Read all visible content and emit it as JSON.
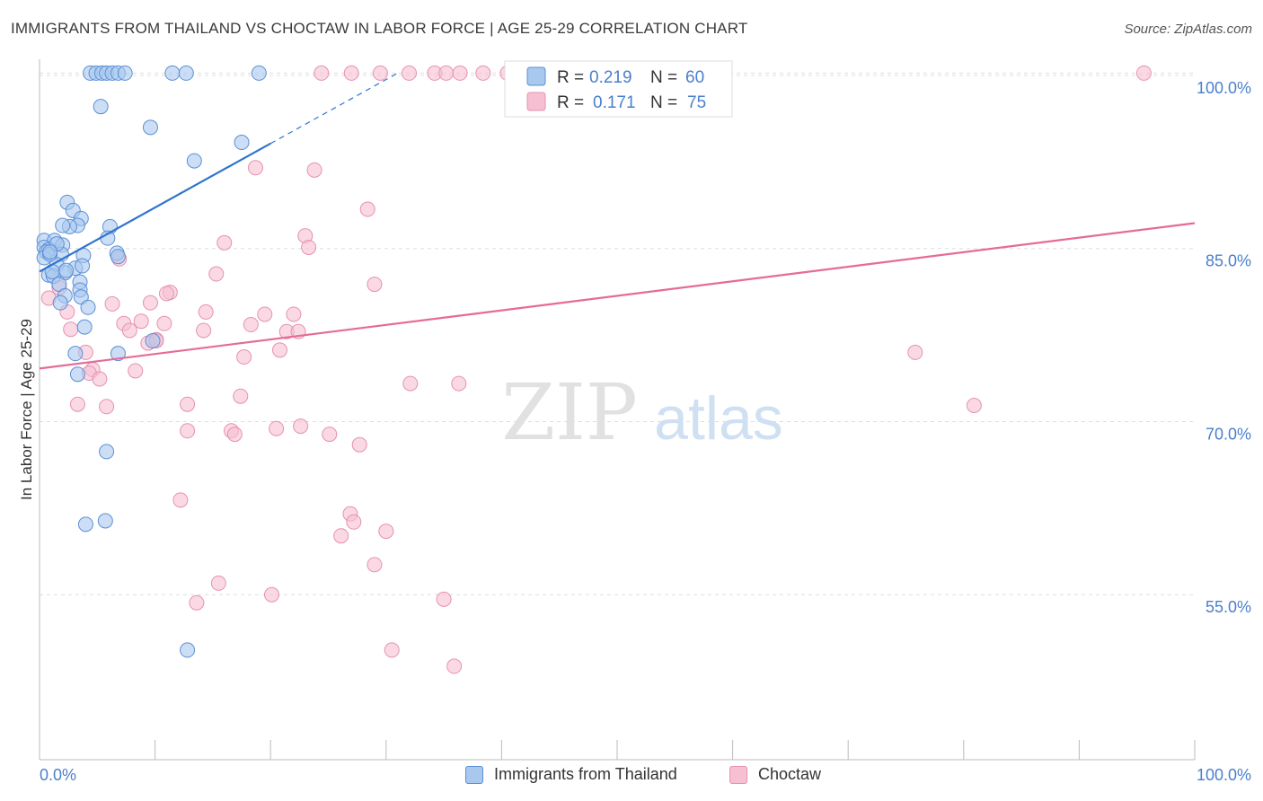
{
  "header": {
    "title": "IMMIGRANTS FROM THAILAND VS CHOCTAW IN LABOR FORCE | AGE 25-29 CORRELATION CHART",
    "source": "Source: ZipAtlas.com"
  },
  "watermark": {
    "zip": "ZIP",
    "atlas": "atlas"
  },
  "colors": {
    "blue_fill": "#a8c8ee",
    "blue_stroke": "#5b8fd6",
    "blue_line": "#2f74d0",
    "pink_fill": "#f6c0d2",
    "pink_stroke": "#e592b0",
    "pink_line": "#e66a98",
    "axis_text": "#4a7fcc",
    "grid": "#dddddd"
  },
  "chart_data": {
    "type": "scatter",
    "title": "IMMIGRANTS FROM THAILAND VS CHOCTAW IN LABOR FORCE | AGE 25-29 CORRELATION CHART",
    "xlabel": "",
    "ylabel": "In Labor Force | Age 25-29",
    "xlim": [
      0,
      100
    ],
    "ylim": [
      40.7,
      101.4
    ],
    "x_tick_labels": [
      "0.0%",
      "100.0%"
    ],
    "y_ticks": [
      55,
      70,
      85,
      100
    ],
    "y_tick_labels": [
      "55.0%",
      "70.0%",
      "85.0%",
      "100.0%"
    ],
    "grid": true,
    "legend_top": [
      {
        "r_label": "R =",
        "r": "0.219",
        "n_label": "N =",
        "n": "60"
      },
      {
        "r_label": "R =",
        "r": "0.171",
        "n_label": "N =",
        "n": "75"
      }
    ],
    "series": [
      {
        "name": "Immigrants from Thailand",
        "color": "blue",
        "trend": {
          "x": [
            0,
            20
          ],
          "y": [
            83.0,
            94.1
          ],
          "dashed_to": {
            "x": 31,
            "y": 100.2
          }
        },
        "points": [
          [
            4.4,
            100.2
          ],
          [
            4.9,
            100.2
          ],
          [
            5.4,
            100.2
          ],
          [
            5.8,
            100.2
          ],
          [
            6.3,
            100.2
          ],
          [
            6.8,
            100.2
          ],
          [
            7.4,
            100.2
          ],
          [
            11.5,
            100.2
          ],
          [
            12.7,
            100.2
          ],
          [
            19,
            100.2
          ],
          [
            5.3,
            97.3
          ],
          [
            9.6,
            95.5
          ],
          [
            17.5,
            94.2
          ],
          [
            13.4,
            92.6
          ],
          [
            2.4,
            89.0
          ],
          [
            2.9,
            88.3
          ],
          [
            3.6,
            87.6
          ],
          [
            3.3,
            87.0
          ],
          [
            2.6,
            86.9
          ],
          [
            6.1,
            86.9
          ],
          [
            0.4,
            85.7
          ],
          [
            1.3,
            85.7
          ],
          [
            2.0,
            85.3
          ],
          [
            0.4,
            85.1
          ],
          [
            0.8,
            84.9
          ],
          [
            0.6,
            84.7
          ],
          [
            1.9,
            84.5
          ],
          [
            3.8,
            84.4
          ],
          [
            6.7,
            84.6
          ],
          [
            6.8,
            84.3
          ],
          [
            0.4,
            84.2
          ],
          [
            1.5,
            83.6
          ],
          [
            3.1,
            83.3
          ],
          [
            2.2,
            82.9
          ],
          [
            0.8,
            82.7
          ],
          [
            1.2,
            82.6
          ],
          [
            3.5,
            82.1
          ],
          [
            1.7,
            81.9
          ],
          [
            3.5,
            81.4
          ],
          [
            2.2,
            80.9
          ],
          [
            3.6,
            80.8
          ],
          [
            1.8,
            80.3
          ],
          [
            4.2,
            79.9
          ],
          [
            3.9,
            78.2
          ],
          [
            9.8,
            77.0
          ],
          [
            3.1,
            75.9
          ],
          [
            6.8,
            75.9
          ],
          [
            3.3,
            74.1
          ],
          [
            5.8,
            67.4
          ],
          [
            4.0,
            61.1
          ],
          [
            5.7,
            61.4
          ],
          [
            12.8,
            50.2
          ],
          [
            5.9,
            85.9
          ],
          [
            0.9,
            84.5
          ],
          [
            1.1,
            83.0
          ],
          [
            2.0,
            87.0
          ],
          [
            3.7,
            83.5
          ],
          [
            1.5,
            85.4
          ],
          [
            2.3,
            83.1
          ],
          [
            0.9,
            84.7
          ]
        ]
      },
      {
        "name": "Choctaw",
        "color": "pink",
        "trend": {
          "x": [
            0,
            100
          ],
          "y": [
            74.6,
            87.2
          ]
        },
        "points": [
          [
            24.4,
            100.2
          ],
          [
            27.0,
            100.2
          ],
          [
            29.5,
            100.2
          ],
          [
            32.0,
            100.2
          ],
          [
            34.2,
            100.2
          ],
          [
            35.2,
            100.2
          ],
          [
            36.4,
            100.2
          ],
          [
            38.4,
            100.2
          ],
          [
            40.5,
            100.2
          ],
          [
            95.6,
            100.2
          ],
          [
            18.7,
            92.0
          ],
          [
            23.8,
            91.8
          ],
          [
            28.4,
            88.4
          ],
          [
            23.0,
            86.1
          ],
          [
            23.3,
            85.1
          ],
          [
            16.0,
            85.5
          ],
          [
            6.9,
            84.1
          ],
          [
            15.3,
            82.8
          ],
          [
            29.0,
            81.9
          ],
          [
            11.3,
            81.2
          ],
          [
            11.0,
            81.1
          ],
          [
            0.8,
            80.7
          ],
          [
            1.7,
            81.6
          ],
          [
            6.3,
            80.2
          ],
          [
            9.6,
            80.3
          ],
          [
            14.4,
            79.5
          ],
          [
            19.5,
            79.3
          ],
          [
            22.0,
            79.3
          ],
          [
            2.4,
            79.5
          ],
          [
            7.3,
            78.5
          ],
          [
            8.8,
            78.7
          ],
          [
            10.8,
            78.5
          ],
          [
            18.3,
            78.4
          ],
          [
            7.8,
            77.9
          ],
          [
            14.2,
            77.9
          ],
          [
            21.4,
            77.8
          ],
          [
            2.7,
            78.0
          ],
          [
            10.1,
            77.1
          ],
          [
            9.4,
            76.8
          ],
          [
            4.0,
            76.0
          ],
          [
            17.7,
            75.6
          ],
          [
            20.8,
            76.2
          ],
          [
            75.8,
            76.0
          ],
          [
            8.3,
            74.4
          ],
          [
            4.6,
            74.5
          ],
          [
            4.3,
            74.2
          ],
          [
            5.2,
            73.7
          ],
          [
            32.1,
            73.3
          ],
          [
            36.3,
            73.3
          ],
          [
            17.4,
            72.2
          ],
          [
            3.3,
            71.5
          ],
          [
            5.8,
            71.3
          ],
          [
            12.8,
            71.5
          ],
          [
            80.9,
            71.4
          ],
          [
            12.8,
            69.2
          ],
          [
            16.6,
            69.2
          ],
          [
            20.5,
            69.4
          ],
          [
            22.6,
            69.6
          ],
          [
            16.9,
            68.9
          ],
          [
            25.1,
            68.9
          ],
          [
            27.7,
            68.0
          ],
          [
            12.2,
            63.2
          ],
          [
            26.9,
            62.0
          ],
          [
            27.2,
            61.3
          ],
          [
            30.0,
            60.5
          ],
          [
            26.1,
            60.1
          ],
          [
            29.0,
            57.6
          ],
          [
            15.5,
            56.0
          ],
          [
            13.6,
            54.3
          ],
          [
            20.1,
            55.0
          ],
          [
            35.0,
            54.6
          ],
          [
            30.5,
            50.2
          ],
          [
            35.9,
            48.8
          ],
          [
            10.1,
            77.0
          ],
          [
            22.4,
            77.8
          ]
        ]
      }
    ]
  },
  "legend_bottom": [
    {
      "label": "Immigrants from Thailand"
    },
    {
      "label": "Choctaw"
    }
  ]
}
